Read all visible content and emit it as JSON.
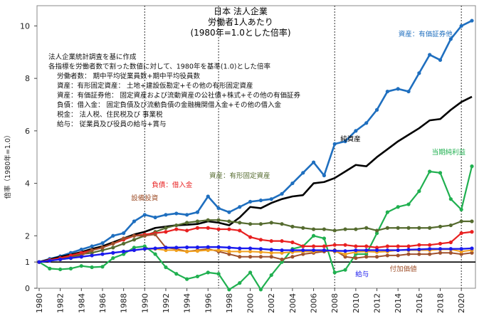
{
  "chart_data": {
    "type": "line",
    "title": [
      "日本 法人企業",
      "労働者1人あたり",
      "(1980年=1.0とした倍率)"
    ],
    "ylabel": "倍率（1980年=1.0）",
    "xlabel": "",
    "xlim": [
      1980,
      2021
    ],
    "ylim": [
      0,
      10.5
    ],
    "yticks": [
      0,
      1,
      2,
      4,
      6,
      8,
      10
    ],
    "xticks": [
      1980,
      1982,
      1984,
      1986,
      1988,
      1990,
      1992,
      1994,
      1996,
      1998,
      2000,
      2002,
      2004,
      2006,
      2008,
      2010,
      2012,
      2014,
      2016,
      2018,
      2020
    ],
    "vlines": [
      1990,
      1997,
      2008,
      2020
    ],
    "baseline": 1.0,
    "notes": [
      "法人企業統計調査を基に作成",
      "各指標を労働者数で割った数値に対して、1980年を基準(1.0)とした倍率",
      "労働者数： 期中平均従業員数+期中平均役員数",
      "資産：有形固定資産： 土地+建設仮勘定+その他の有形固定資産",
      "資産：有価証券他： 固定資産および流動資産の公社債+株式+その他の有価証券",
      "負債：借入金： 固定負債及び流動負債の金融機関借入金+その他の借入金",
      "税金： 法人税、住民税及び 事業税",
      "給与： 従業員及び役員の給与+賞与"
    ],
    "x": [
      1980,
      1981,
      1982,
      1983,
      1984,
      1985,
      1986,
      1987,
      1988,
      1989,
      1990,
      1991,
      1992,
      1993,
      1994,
      1995,
      1996,
      1997,
      1998,
      1999,
      2000,
      2001,
      2002,
      2003,
      2004,
      2005,
      2006,
      2007,
      2008,
      2009,
      2010,
      2011,
      2012,
      2013,
      2014,
      2015,
      2016,
      2017,
      2018,
      2019,
      2020,
      2021
    ],
    "series": [
      {
        "name": "資産：有価証券他",
        "color": "#1f6fbf",
        "width": 2.6,
        "values": [
          1.0,
          1.12,
          1.22,
          1.35,
          1.48,
          1.6,
          1.72,
          2.0,
          2.1,
          2.55,
          2.8,
          2.7,
          2.8,
          2.85,
          2.8,
          2.9,
          3.5,
          3.05,
          2.9,
          3.1,
          3.3,
          3.35,
          3.4,
          3.6,
          4.0,
          4.4,
          4.8,
          4.3,
          5.5,
          5.6,
          6.0,
          6.3,
          6.8,
          7.5,
          7.6,
          7.5,
          8.2,
          8.9,
          8.7,
          9.5,
          10.0,
          10.2
        ]
      },
      {
        "name": "純資産",
        "color": "#000000",
        "width": 2.6,
        "values": [
          1.0,
          1.1,
          1.2,
          1.28,
          1.38,
          1.5,
          1.6,
          1.75,
          1.9,
          2.05,
          2.15,
          2.3,
          2.35,
          2.4,
          2.42,
          2.45,
          2.55,
          2.5,
          2.4,
          2.7,
          3.1,
          3.05,
          3.25,
          3.4,
          3.5,
          3.55,
          4.0,
          4.05,
          4.2,
          4.45,
          4.7,
          4.65,
          5.0,
          5.3,
          5.6,
          5.85,
          6.1,
          6.4,
          6.45,
          6.8,
          7.1,
          7.3
        ]
      },
      {
        "name": "当期純利益",
        "color": "#20b050",
        "width": 2.2,
        "values": [
          1.0,
          0.75,
          0.72,
          0.75,
          0.85,
          0.8,
          0.82,
          1.15,
          1.3,
          1.55,
          1.6,
          1.3,
          0.8,
          0.55,
          0.35,
          0.45,
          0.6,
          0.55,
          -0.05,
          0.2,
          0.6,
          -0.05,
          0.5,
          1.0,
          1.5,
          1.6,
          2.0,
          1.9,
          0.6,
          0.7,
          1.3,
          1.3,
          2.1,
          2.9,
          3.1,
          3.2,
          3.7,
          4.45,
          4.4,
          3.4,
          3.0,
          4.65
        ]
      },
      {
        "name": "資産：有形固定資産",
        "color": "#556b2f",
        "width": 2.2,
        "values": [
          1.0,
          1.05,
          1.12,
          1.2,
          1.3,
          1.35,
          1.45,
          1.55,
          1.7,
          1.85,
          2.0,
          2.15,
          2.3,
          2.4,
          2.5,
          2.55,
          2.6,
          2.6,
          2.55,
          2.5,
          2.45,
          2.45,
          2.5,
          2.45,
          2.35,
          2.3,
          2.25,
          2.25,
          2.2,
          2.25,
          2.25,
          2.3,
          2.2,
          2.3,
          2.3,
          2.3,
          2.3,
          2.3,
          2.35,
          2.4,
          2.55,
          2.55
        ]
      },
      {
        "name": "負債：借入金",
        "color": "#e82020",
        "width": 2.2,
        "values": [
          1.0,
          1.08,
          1.15,
          1.25,
          1.35,
          1.45,
          1.55,
          1.7,
          1.85,
          2.0,
          2.05,
          2.1,
          2.15,
          2.25,
          2.2,
          2.3,
          2.3,
          2.25,
          2.25,
          2.2,
          1.95,
          1.85,
          1.8,
          1.8,
          1.75,
          1.6,
          1.6,
          1.6,
          1.65,
          1.65,
          1.6,
          1.6,
          1.55,
          1.6,
          1.6,
          1.6,
          1.65,
          1.65,
          1.7,
          1.75,
          2.1,
          2.15
        ]
      },
      {
        "name": "設備投資",
        "color": "#a0522d",
        "width": 2.0,
        "values": [
          1.0,
          1.05,
          1.1,
          1.15,
          1.25,
          1.45,
          1.55,
          1.7,
          1.9,
          2.0,
          2.0,
          2.05,
          1.55,
          1.5,
          1.4,
          1.45,
          1.5,
          1.4,
          1.3,
          1.2,
          1.2,
          1.2,
          1.2,
          1.1,
          1.2,
          1.3,
          1.35,
          1.4,
          1.45,
          1.2,
          1.15,
          1.2,
          1.2,
          1.25,
          1.25,
          1.3,
          1.3,
          1.3,
          1.35,
          1.35,
          1.3,
          1.35
        ]
      },
      {
        "name": "付加価値",
        "color": "#f0a020",
        "width": 2.0,
        "values": [
          1.0,
          1.05,
          1.1,
          1.15,
          1.2,
          1.25,
          1.3,
          1.35,
          1.4,
          1.45,
          1.5,
          1.5,
          1.45,
          1.45,
          1.4,
          1.42,
          1.45,
          1.45,
          1.4,
          1.4,
          1.4,
          1.38,
          1.35,
          1.35,
          1.38,
          1.4,
          1.4,
          1.45,
          1.4,
          1.3,
          1.38,
          1.4,
          1.38,
          1.4,
          1.45,
          1.45,
          1.45,
          1.45,
          1.48,
          1.48,
          1.4,
          1.45
        ]
      },
      {
        "name": "給与",
        "color": "#1a1aee",
        "width": 2.4,
        "values": [
          1.0,
          1.05,
          1.1,
          1.15,
          1.2,
          1.25,
          1.3,
          1.35,
          1.4,
          1.45,
          1.5,
          1.52,
          1.55,
          1.55,
          1.56,
          1.56,
          1.57,
          1.57,
          1.55,
          1.52,
          1.52,
          1.5,
          1.47,
          1.45,
          1.45,
          1.45,
          1.45,
          1.45,
          1.43,
          1.42,
          1.45,
          1.45,
          1.45,
          1.45,
          1.45,
          1.47,
          1.48,
          1.5,
          1.5,
          1.5,
          1.5,
          1.52
        ]
      }
    ],
    "labels": [
      {
        "text": "資産：有価証券他",
        "x": 2016.6,
        "y": 9.6,
        "color": "#1f6fbf"
      },
      {
        "text": "純資産",
        "x": 2009.5,
        "y": 5.6,
        "color": "#000000"
      },
      {
        "text": "当期純利益",
        "x": 2018.8,
        "y": 5.1,
        "color": "#20b050"
      },
      {
        "text": "資産：有形固定資産",
        "x": 1999.0,
        "y": 4.2,
        "color": "#556b2f"
      },
      {
        "text": "負債：借入金",
        "x": 1992.6,
        "y": 3.85,
        "color": "#e82020"
      },
      {
        "text": "設備投資",
        "x": 1990.0,
        "y": 3.35,
        "color": "#a0522d"
      },
      {
        "text": "給与",
        "x": 2010.6,
        "y": 0.45,
        "color": "#1a1aee"
      },
      {
        "text": "付加価値",
        "x": 2014.5,
        "y": 0.65,
        "color": "#a0522d"
      }
    ]
  }
}
